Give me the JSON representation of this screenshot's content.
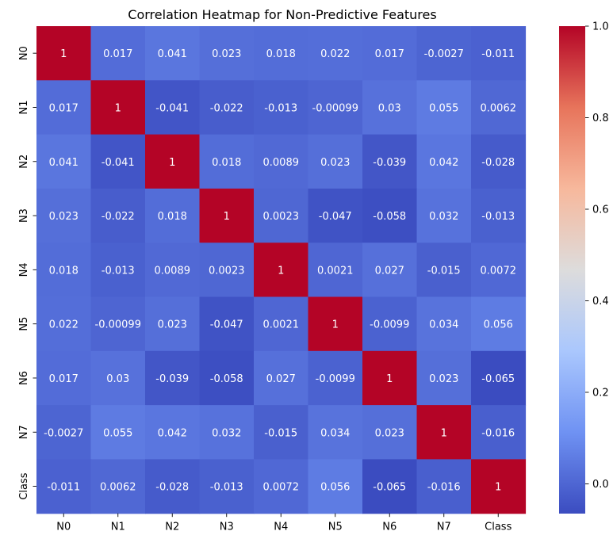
{
  "chart_data": {
    "type": "heatmap",
    "title": "Correlation Heatmap for Non-Predictive Features",
    "xlabel": "",
    "ylabel": "",
    "x_labels": [
      "N0",
      "N1",
      "N2",
      "N3",
      "N4",
      "N5",
      "N6",
      "N7",
      "Class"
    ],
    "y_labels": [
      "N0",
      "N1",
      "N2",
      "N3",
      "N4",
      "N5",
      "N6",
      "N7",
      "Class"
    ],
    "matrix": [
      [
        1,
        0.017,
        0.041,
        0.023,
        0.018,
        0.022,
        0.017,
        -0.0027,
        -0.011
      ],
      [
        0.017,
        1,
        -0.041,
        -0.022,
        -0.013,
        -0.00099,
        0.03,
        0.055,
        0.0062
      ],
      [
        0.041,
        -0.041,
        1,
        0.018,
        0.0089,
        0.023,
        -0.039,
        0.042,
        -0.028
      ],
      [
        0.023,
        -0.022,
        0.018,
        1,
        0.0023,
        -0.047,
        -0.058,
        0.032,
        -0.013
      ],
      [
        0.018,
        -0.013,
        0.0089,
        0.0023,
        1,
        0.0021,
        0.027,
        -0.015,
        0.0072
      ],
      [
        0.022,
        -0.00099,
        0.023,
        -0.047,
        0.0021,
        1,
        -0.0099,
        0.034,
        0.056
      ],
      [
        0.017,
        0.03,
        -0.039,
        -0.058,
        0.027,
        -0.0099,
        1,
        0.023,
        -0.065
      ],
      [
        -0.0027,
        0.055,
        0.042,
        0.032,
        -0.015,
        0.034,
        0.023,
        1,
        -0.016
      ],
      [
        -0.011,
        0.0062,
        -0.028,
        -0.013,
        0.0072,
        0.056,
        -0.065,
        -0.016,
        1
      ]
    ],
    "annotations": [
      [
        "1",
        "0.017",
        "0.041",
        "0.023",
        "0.018",
        "0.022",
        "0.017",
        "-0.0027",
        "-0.011"
      ],
      [
        "0.017",
        "1",
        "-0.041",
        "-0.022",
        "-0.013",
        "-0.00099",
        "0.03",
        "0.055",
        "0.0062"
      ],
      [
        "0.041",
        "-0.041",
        "1",
        "0.018",
        "0.0089",
        "0.023",
        "-0.039",
        "0.042",
        "-0.028"
      ],
      [
        "0.023",
        "-0.022",
        "0.018",
        "1",
        "0.0023",
        "-0.047",
        "-0.058",
        "0.032",
        "-0.013"
      ],
      [
        "0.018",
        "-0.013",
        "0.0089",
        "0.0023",
        "1",
        "0.0021",
        "0.027",
        "-0.015",
        "0.0072"
      ],
      [
        "0.022",
        "-0.00099",
        "0.023",
        "-0.047",
        "0.0021",
        "1",
        "-0.0099",
        "0.034",
        "0.056"
      ],
      [
        "0.017",
        "0.03",
        "-0.039",
        "-0.058",
        "0.027",
        "-0.0099",
        "1",
        "0.023",
        "-0.065"
      ],
      [
        "-0.0027",
        "0.055",
        "0.042",
        "0.032",
        "-0.015",
        "0.034",
        "0.023",
        "1",
        "-0.016"
      ],
      [
        "-0.011",
        "0.0062",
        "-0.028",
        "-0.013",
        "0.0072",
        "0.056",
        "-0.065",
        "-0.016",
        "1"
      ]
    ],
    "colormap": "coolwarm",
    "colormap_stops": [
      "#3b4cc0",
      "#6f92f3",
      "#aac7fd",
      "#dddcdc",
      "#f7b89c",
      "#e7745b",
      "#b40426"
    ],
    "vmin": -0.065,
    "vmax": 1,
    "colorbar_ticks": [
      0.0,
      0.2,
      0.4,
      0.6,
      0.8,
      1.0
    ],
    "colorbar_tick_labels": [
      "0.0",
      "0.2",
      "0.4",
      "0.6",
      "0.8",
      "1.0"
    ],
    "annotation_color_dark_bg": "#ffffff",
    "grid": false,
    "colorbar_position": "right"
  }
}
